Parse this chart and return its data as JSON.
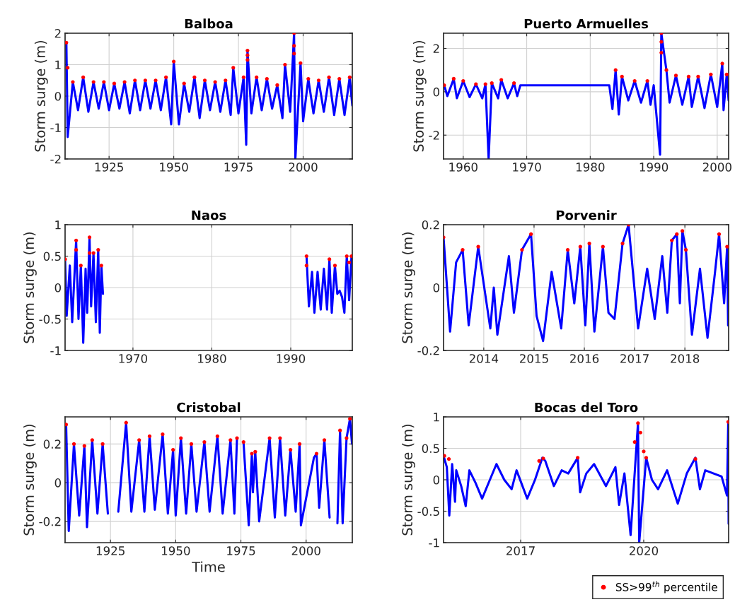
{
  "chart_data": [
    {
      "type": "line",
      "title": "Balboa",
      "ylabel": "Storm surge (m)",
      "xlim": [
        1908,
        2019
      ],
      "xticks": [
        1925,
        1950,
        1975,
        2000
      ],
      "ylim": [
        -2,
        2
      ],
      "yticks": [
        -2,
        -1,
        0,
        1,
        2
      ],
      "grid": true,
      "series": [
        {
          "type": "line",
          "color": "#0000ff",
          "x": [
            1908.5,
            1909,
            1911,
            1913,
            1915,
            1917,
            1919,
            1921,
            1923,
            1925,
            1927,
            1929,
            1931,
            1933,
            1935,
            1937,
            1939,
            1941,
            1943,
            1945,
            1947,
            1949,
            1950,
            1952,
            1954,
            1956,
            1958,
            1960,
            1962,
            1964,
            1966,
            1968,
            1970,
            1972,
            1973,
            1975,
            1977,
            1978,
            1978.5,
            1980,
            1982,
            1984,
            1986,
            1988,
            1990,
            1992,
            1993,
            1995,
            1996.5,
            1997,
            1999,
            2000,
            2002,
            2004,
            2006,
            2008,
            2010,
            2012,
            2014,
            2016,
            2018,
            2019
          ],
          "values": [
            1.7,
            -1.3,
            0.45,
            -0.45,
            0.6,
            -0.5,
            0.45,
            -0.4,
            0.45,
            -0.45,
            0.4,
            -0.4,
            0.45,
            -0.55,
            0.5,
            -0.45,
            0.5,
            -0.4,
            0.5,
            -0.45,
            0.6,
            -0.9,
            1.1,
            -0.9,
            0.4,
            -0.5,
            0.6,
            -0.7,
            0.5,
            -0.45,
            0.45,
            -0.5,
            0.5,
            -0.6,
            0.9,
            -0.55,
            0.6,
            -1.55,
            1.45,
            -0.55,
            0.6,
            -0.45,
            0.55,
            -0.4,
            0.35,
            -0.7,
            1.0,
            -0.5,
            2.0,
            -2.0,
            1.05,
            -0.8,
            0.55,
            -0.55,
            0.5,
            -0.5,
            0.6,
            -0.6,
            0.55,
            -0.6,
            0.6,
            -0.3
          ]
        },
        {
          "type": "scatter",
          "marker": "circle",
          "color": "#ff0000",
          "x": [
            1908.5,
            1909,
            1911,
            1915,
            1919,
            1923,
            1927,
            1931,
            1935,
            1939,
            1943,
            1947,
            1950,
            1954,
            1958,
            1962,
            1966,
            1970,
            1973,
            1977,
            1978.5,
            1978.5,
            1978.5,
            1982,
            1986,
            1990,
            1993,
            1996.5,
            1996.5,
            1996.5,
            1999,
            2002,
            2006,
            2010,
            2014,
            2018
          ],
          "values": [
            1.7,
            0.9,
            0.45,
            0.6,
            0.45,
            0.45,
            0.4,
            0.45,
            0.5,
            0.5,
            0.5,
            0.6,
            1.1,
            0.4,
            0.6,
            0.5,
            0.45,
            0.5,
            0.9,
            0.6,
            1.45,
            1.3,
            1.15,
            0.6,
            0.55,
            0.35,
            1.0,
            2.0,
            1.6,
            1.35,
            1.05,
            0.55,
            0.5,
            0.6,
            0.55,
            0.6
          ]
        }
      ]
    },
    {
      "type": "line",
      "title": "Puerto Armuelles",
      "ylabel": "Storm surge (m)",
      "xlim": [
        1956.9,
        2001.8
      ],
      "xticks": [
        1960,
        1970,
        1980,
        1990,
        2000
      ],
      "ylim": [
        -3.1,
        2.7
      ],
      "yticks": [
        -2,
        0,
        2
      ],
      "grid": true,
      "series": [
        {
          "type": "line",
          "color": "#0000ff",
          "x": [
            1957,
            1957.5,
            1958.5,
            1959,
            1960,
            1961,
            1962,
            1963,
            1963.5,
            1964,
            1964.5,
            1965.5,
            1966,
            1967,
            1968,
            1968.5,
            1969,
            1983,
            1983.5,
            1984,
            1984.5,
            1985,
            1986,
            1987,
            1988,
            1989,
            1989.5,
            1990,
            1991,
            1991.2,
            1992,
            1992.5,
            1993.5,
            1994.5,
            1995.5,
            1996,
            1997,
            1998,
            1999,
            2000,
            2000.8,
            2001,
            2001.5,
            2001.8
          ],
          "values": [
            0.3,
            -0.2,
            0.6,
            -0.3,
            0.5,
            -0.25,
            0.35,
            -0.3,
            0.35,
            -3.1,
            0.4,
            -0.3,
            0.55,
            -0.3,
            0.4,
            -0.2,
            0.3,
            0.3,
            -0.8,
            1.0,
            -1.05,
            0.7,
            -0.4,
            0.5,
            -0.5,
            0.5,
            -0.6,
            0.3,
            -2.9,
            2.7,
            1.0,
            -0.5,
            0.75,
            -0.6,
            0.7,
            -0.7,
            0.7,
            -0.75,
            0.8,
            -0.7,
            1.3,
            -0.85,
            0.8,
            -0.4
          ]
        },
        {
          "type": "scatter",
          "marker": "circle",
          "color": "#ff0000",
          "x": [
            1957,
            1958.5,
            1960,
            1962,
            1963.5,
            1964.5,
            1966,
            1968,
            1984,
            1985,
            1987,
            1989,
            1991.2,
            1991.2,
            1991.2,
            1992,
            1993.5,
            1995.5,
            1997,
            1999,
            2000.8,
            2001.5
          ],
          "values": [
            0.3,
            0.6,
            0.5,
            0.35,
            0.35,
            0.4,
            0.55,
            0.4,
            1.0,
            0.7,
            0.5,
            0.5,
            2.7,
            2.3,
            1.8,
            1.0,
            0.75,
            0.7,
            0.7,
            0.8,
            1.3,
            0.8
          ]
        }
      ]
    },
    {
      "type": "line",
      "title": "Naos",
      "ylabel": "Storm surge (m)",
      "xlim": [
        1961.4,
        1997.8
      ],
      "xticks": [
        1970,
        1980,
        1990
      ],
      "ylim": [
        -1,
        1
      ],
      "yticks": [
        -1,
        -0.5,
        0,
        0.5,
        1
      ],
      "grid": true,
      "series": [
        {
          "type": "line",
          "color": "#0000ff",
          "x": [
            1961.4,
            1961.6,
            1962,
            1962.3,
            1962.8,
            1963.1,
            1963.4,
            1963.7,
            1964,
            1964.2,
            1964.5,
            1964.7,
            1965,
            1965.3,
            1965.6,
            1965.8,
            1966,
            1966.2,
            1979,
            1992,
            1992.3,
            1992.7,
            1993,
            1993.4,
            1993.8,
            1994.2,
            1994.6,
            1994.9,
            1995.2,
            1995.6,
            1995.9,
            1996.2,
            1996.5,
            1996.8,
            1997.1,
            1997.4,
            1997.7
          ],
          "values": [
            0.45,
            -0.45,
            0.35,
            -0.55,
            0.75,
            -0.5,
            0.35,
            -0.88,
            0.3,
            -0.4,
            0.8,
            -0.3,
            0.55,
            -0.55,
            0.6,
            -0.72,
            0.35,
            -0.1,
            null,
            0.5,
            -0.3,
            0.25,
            -0.4,
            0.25,
            -0.35,
            0.3,
            -0.35,
            0.45,
            -0.4,
            0.35,
            -0.1,
            -0.05,
            -0.15,
            -0.4,
            0.5,
            -0.2,
            0.5
          ]
        },
        {
          "type": "scatter",
          "marker": "circle",
          "color": "#ff0000",
          "x": [
            1961.4,
            1962.8,
            1962.8,
            1963.4,
            1964.5,
            1964.5,
            1965,
            1965.6,
            1966,
            1992,
            1992,
            1994.9,
            1995.6,
            1997.1,
            1997.4,
            1997.7
          ],
          "values": [
            0.45,
            0.75,
            0.6,
            0.35,
            0.8,
            0.55,
            0.55,
            0.6,
            0.35,
            0.5,
            0.35,
            0.45,
            0.35,
            0.5,
            0.4,
            0.5
          ]
        }
      ]
    },
    {
      "type": "line",
      "title": "Porvenir",
      "ylabel": "Storm surge (m)",
      "xlim": [
        2013.2,
        2018.87
      ],
      "xticks": [
        2014,
        2015,
        2016,
        2017,
        2018
      ],
      "ylim": [
        -0.2,
        0.2
      ],
      "yticks": [
        -0.2,
        0,
        0.2
      ],
      "grid": true,
      "series": [
        {
          "type": "line",
          "color": "#0000ff",
          "x": [
            2013.2,
            2013.33,
            2013.45,
            2013.58,
            2013.7,
            2013.89,
            2014.13,
            2014.2,
            2014.27,
            2014.5,
            2014.6,
            2014.76,
            2014.94,
            2015.05,
            2015.18,
            2015.35,
            2015.54,
            2015.67,
            2015.8,
            2015.92,
            2016.02,
            2016.1,
            2016.2,
            2016.37,
            2016.48,
            2016.6,
            2016.76,
            2016.88,
            2017.07,
            2017.25,
            2017.4,
            2017.55,
            2017.65,
            2017.74,
            2017.84,
            2017.9,
            2017.95,
            2018.02,
            2018.14,
            2018.3,
            2018.45,
            2018.6,
            2018.68,
            2018.78,
            2018.84,
            2018.86
          ],
          "values": [
            0.16,
            -0.14,
            0.08,
            0.12,
            -0.12,
            0.13,
            -0.13,
            0.0,
            -0.15,
            0.1,
            -0.08,
            0.12,
            0.17,
            -0.09,
            -0.17,
            0.05,
            -0.13,
            0.12,
            -0.05,
            0.13,
            -0.12,
            0.14,
            -0.14,
            0.13,
            -0.08,
            -0.1,
            0.14,
            0.2,
            -0.13,
            0.06,
            -0.1,
            0.1,
            -0.08,
            0.15,
            0.17,
            -0.05,
            0.18,
            0.12,
            -0.15,
            0.06,
            -0.16,
            0.05,
            0.17,
            -0.05,
            0.13,
            -0.12
          ]
        },
        {
          "type": "scatter",
          "marker": "circle",
          "color": "#ff0000",
          "x": [
            2013.2,
            2013.58,
            2013.89,
            2014.76,
            2014.94,
            2015.67,
            2015.92,
            2016.1,
            2016.37,
            2016.76,
            2016.88,
            2017.74,
            2017.84,
            2017.95,
            2018.02,
            2018.68,
            2018.84
          ],
          "values": [
            0.16,
            0.12,
            0.13,
            0.12,
            0.17,
            0.12,
            0.13,
            0.14,
            0.13,
            0.14,
            0.2,
            0.15,
            0.17,
            0.18,
            0.12,
            0.17,
            0.13
          ]
        }
      ]
    },
    {
      "type": "line",
      "title": "Cristobal",
      "xlabel": "Time",
      "ylabel": "Storm surge (m)",
      "xlim": [
        1907.6,
        2017.7
      ],
      "xticks": [
        1925,
        1950,
        1975,
        2000
      ],
      "ylim": [
        -0.31,
        0.34
      ],
      "yticks": [
        -0.2,
        0,
        0.2
      ],
      "grid": true,
      "series": [
        {
          "type": "line",
          "color": "#0000ff",
          "x": [
            1908,
            1909,
            1911,
            1913,
            1915,
            1916,
            1918,
            1920,
            1922,
            1924,
            1926,
            1928,
            1931,
            1933,
            1936,
            1938,
            1940,
            1942,
            1945,
            1947,
            1949,
            1950,
            1952,
            1954,
            1956,
            1958,
            1961,
            1963,
            1966,
            1968,
            1971,
            1972.5,
            1973.5,
            1974,
            1976,
            1978,
            1979.2,
            1979.6,
            1980.5,
            1982,
            1986,
            1988,
            1990,
            1992,
            1994,
            1996,
            1997.5,
            1998,
            2003,
            2004,
            2005,
            2007,
            2009,
            2010,
            2012,
            2013,
            2014,
            2015.5,
            2016.8,
            2017.6
          ],
          "values": [
            0.3,
            -0.25,
            0.2,
            -0.17,
            0.19,
            -0.23,
            0.22,
            -0.16,
            0.2,
            -0.16,
            null,
            -0.15,
            0.31,
            -0.15,
            0.22,
            -0.15,
            0.24,
            -0.14,
            0.25,
            -0.16,
            0.17,
            -0.17,
            0.23,
            -0.16,
            0.2,
            -0.15,
            0.21,
            -0.15,
            0.24,
            -0.16,
            0.22,
            -0.16,
            0.23,
            null,
            0.21,
            -0.22,
            0.15,
            -0.05,
            0.16,
            -0.2,
            0.23,
            -0.18,
            0.23,
            -0.17,
            0.17,
            -0.15,
            0.2,
            -0.22,
            0.13,
            0.15,
            -0.13,
            0.22,
            -0.18,
            null,
            -0.21,
            0.27,
            -0.21,
            0.23,
            0.33,
            0.2
          ]
        },
        {
          "type": "scatter",
          "marker": "circle",
          "color": "#ff0000",
          "x": [
            1908,
            1911,
            1915,
            1918,
            1922,
            1926,
            1931,
            1936,
            1940,
            1945,
            1949,
            1952,
            1956,
            1961,
            1966,
            1971,
            1973.5,
            1976,
            1979.2,
            1980.5,
            1986,
            1990,
            1994,
            1997.5,
            2004,
            2007,
            2010,
            2013,
            2015.5,
            2016.8
          ],
          "values": [
            0.3,
            0.2,
            0.19,
            0.22,
            0.2,
            null,
            0.31,
            0.22,
            0.24,
            0.25,
            0.17,
            0.23,
            0.2,
            0.21,
            0.24,
            0.22,
            0.23,
            0.21,
            0.15,
            0.16,
            0.23,
            0.23,
            0.17,
            0.2,
            0.15,
            0.22,
            null,
            0.27,
            0.23,
            0.33
          ]
        }
      ]
    },
    {
      "type": "line",
      "title": "Bocas del Toro",
      "ylabel": "Storm surge (m)",
      "xlim": [
        2015.12,
        2022.07
      ],
      "xticks": [
        2017,
        2020
      ],
      "ylim": [
        -1,
        1
      ],
      "yticks": [
        -1,
        -0.5,
        0,
        0.5,
        1
      ],
      "grid": true,
      "legend": "bottom right",
      "series": [
        {
          "type": "line",
          "color": "#0000ff",
          "x": [
            2015.12,
            2015.2,
            2015.26,
            2015.33,
            2015.4,
            2015.43,
            2015.55,
            2015.66,
            2015.75,
            2015.9,
            2016.06,
            2016.25,
            2016.41,
            2016.6,
            2016.78,
            2016.9,
            2017.16,
            2017.35,
            2017.53,
            2017.6,
            2017.81,
            2018.0,
            2018.16,
            2018.39,
            2018.45,
            2018.6,
            2018.79,
            2019.08,
            2019.31,
            2019.4,
            2019.53,
            2019.68,
            2019.86,
            2019.89,
            2020.06,
            2020.2,
            2020.35,
            2020.57,
            2020.83,
            2021.05,
            2021.26,
            2021.37,
            2021.5,
            2021.9,
            2022.03,
            2022.06,
            2022.07
          ],
          "values": [
            0.38,
            0.2,
            -0.57,
            0.25,
            -0.35,
            0.15,
            -0.1,
            -0.42,
            0.15,
            -0.05,
            -0.3,
            0.0,
            0.25,
            0.0,
            -0.15,
            0.15,
            -0.3,
            0.0,
            0.35,
            0.3,
            -0.1,
            0.15,
            0.1,
            0.35,
            -0.2,
            0.1,
            0.25,
            -0.1,
            0.2,
            -0.4,
            0.1,
            -0.88,
            0.9,
            -1.0,
            0.35,
            0.0,
            -0.15,
            0.15,
            -0.38,
            0.1,
            0.35,
            -0.15,
            0.15,
            0.05,
            -0.25,
            0.9,
            -0.7
          ]
        },
        {
          "type": "scatter",
          "name": "SS>99$^{th}$ percentile",
          "marker": "circle",
          "color": "#ff0000",
          "x": [
            2015.14,
            2015.25,
            2017.45,
            2017.55,
            2018.39,
            2019.78,
            2019.86,
            2019.92,
            2020.0,
            2020.06,
            2021.26,
            2022.06
          ],
          "values": [
            0.38,
            0.33,
            0.3,
            0.34,
            0.35,
            0.6,
            0.9,
            0.75,
            0.45,
            0.35,
            0.33,
            0.92
          ]
        }
      ]
    }
  ]
}
